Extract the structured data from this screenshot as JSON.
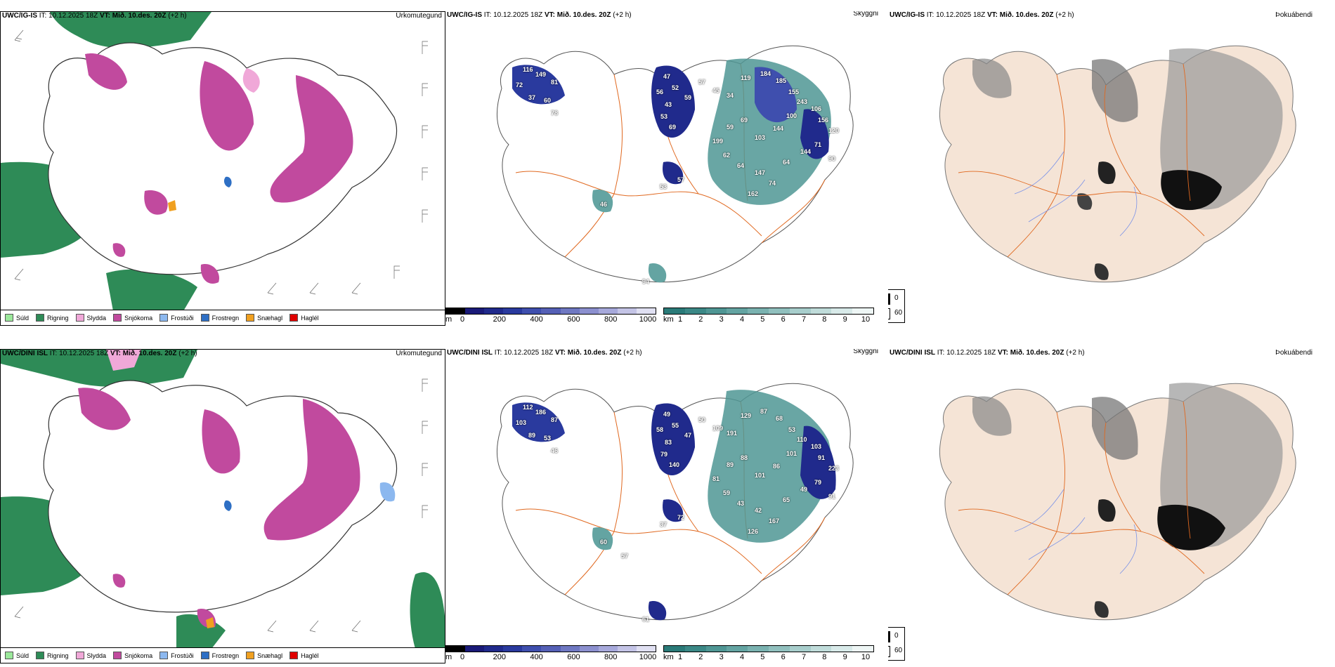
{
  "rows": [
    {
      "model": "UWC/IG-IS",
      "it": "IT: 10.12.2025 18Z",
      "vt_label": "VT:",
      "vt": "Mið. 10.des. 20Z",
      "lead": "(+2 h)",
      "precip_type_title": "Úrkomutegund",
      "visibility_title": "Skyggni",
      "fog_title": "Þokuábendi",
      "ceiling_labels": [
        "116",
        "149",
        "81",
        "72",
        "37",
        "60",
        "78",
        "47",
        "52",
        "56",
        "43",
        "53",
        "69",
        "59",
        "57",
        "45",
        "34",
        "119",
        "184",
        "185",
        "155",
        "243",
        "106",
        "156",
        "120",
        "100",
        "144",
        "103",
        "69",
        "59",
        "199",
        "62",
        "64",
        "147",
        "74",
        "64",
        "144",
        "71",
        "90",
        "162",
        "57",
        "53",
        "94",
        "46"
      ]
    },
    {
      "model": "UWC/DINI ISL",
      "it": "IT: 10.12.2025 18Z",
      "vt_label": "VT:",
      "vt": "Mið. 10.des. 20Z",
      "lead": "(+2 h)",
      "precip_type_title": "Úrkomutegund",
      "visibility_title": "Skyggni",
      "fog_title": "Þokuábendi",
      "ceiling_labels": [
        "112",
        "186",
        "87",
        "103",
        "89",
        "53",
        "46",
        "49",
        "55",
        "58",
        "83",
        "79",
        "140",
        "47",
        "50",
        "109",
        "191",
        "129",
        "87",
        "68",
        "53",
        "110",
        "103",
        "91",
        "223",
        "101",
        "86",
        "101",
        "88",
        "89",
        "81",
        "59",
        "43",
        "42",
        "167",
        "65",
        "49",
        "79",
        "91",
        "126",
        "72",
        "37",
        "61",
        "60",
        "57"
      ]
    }
  ],
  "precip_legend": [
    {
      "label": "Súld",
      "color": "#9be89b"
    },
    {
      "label": "Rigning",
      "color": "#2e8b57"
    },
    {
      "label": "Slydda",
      "color": "#f0a8d8"
    },
    {
      "label": "Snjókoma",
      "color": "#c14a9e"
    },
    {
      "label": "Frostúði",
      "color": "#8cb8ef"
    },
    {
      "label": "Frostregn",
      "color": "#2e6fc4"
    },
    {
      "label": "Snæhagl",
      "color": "#f0a020"
    },
    {
      "label": "Haglél",
      "color": "#e00000"
    }
  ],
  "ceiling_colorbar": {
    "unit": "m",
    "ticks": [
      "0",
      "200",
      "400",
      "600",
      "800",
      "1000"
    ],
    "colors": [
      "#000000",
      "#1a1a78",
      "#202a8c",
      "#2a3a9e",
      "#3f4fae",
      "#5560b6",
      "#6f78c2",
      "#8c90cf",
      "#a7a9db",
      "#c4c4e6",
      "#e0e0f2"
    ]
  },
  "visibility_colorbar": {
    "unit": "km",
    "ticks": [
      "1",
      "2",
      "3",
      "4",
      "5",
      "6",
      "7",
      "8",
      "9",
      "10"
    ],
    "colors": [
      "#2a7a78",
      "#3b8886",
      "#4f9694",
      "#64a4a2",
      "#7ab2b0",
      "#91c0be",
      "#a8cecc",
      "#c0dcda",
      "#d8eae9",
      "#eef6f5"
    ]
  },
  "fog_legend": [
    {
      "label": "0",
      "color": "#000000"
    },
    {
      "label": "60",
      "color": "#ffffff"
    }
  ],
  "colors": {
    "land": "#f5e4d6",
    "roads": "#e0681f",
    "rivers": "#7a92e8"
  }
}
